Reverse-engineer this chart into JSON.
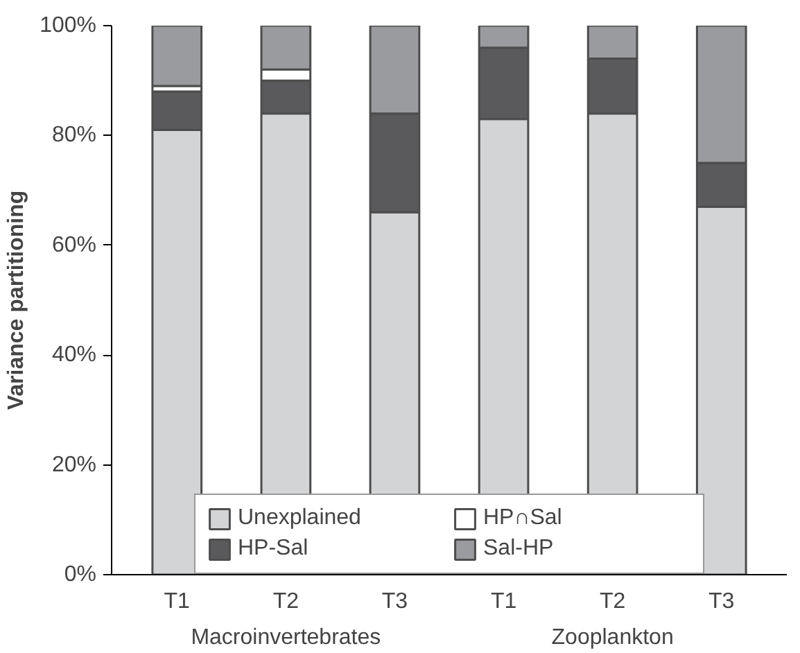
{
  "chart_data": {
    "type": "bar",
    "stacked": true,
    "ylabel": "Variance partitioning",
    "categories": [
      "T1",
      "T2",
      "T3",
      "T1",
      "T2",
      "T3"
    ],
    "series": [
      {
        "name": "Unexplained",
        "color": "#d3d4d6",
        "values": [
          81,
          84,
          66,
          83,
          84,
          67
        ]
      },
      {
        "name": "HP-Sal",
        "color": "#5a5a5c",
        "values": [
          7,
          6,
          18,
          13,
          10,
          8
        ]
      },
      {
        "name": "HP∩Sal",
        "color": "#ffffff",
        "values": [
          1,
          2,
          0,
          0,
          0,
          0
        ]
      },
      {
        "name": "Sal-HP",
        "color": "#9a9b9e",
        "values": [
          11,
          8,
          16,
          4,
          6,
          25
        ]
      }
    ],
    "ylim": [
      0,
      100
    ],
    "yticks": [
      {
        "value": 0,
        "label": "0%"
      },
      {
        "value": 20,
        "label": "20%"
      },
      {
        "value": 40,
        "label": "40%"
      },
      {
        "value": 60,
        "label": "60%"
      },
      {
        "value": 80,
        "label": "80%"
      },
      {
        "value": 100,
        "label": "100%"
      }
    ],
    "annotations": [
      "Macroinvertebrates",
      "Zooplankton"
    ],
    "grid": false,
    "legend": "bottom"
  }
}
